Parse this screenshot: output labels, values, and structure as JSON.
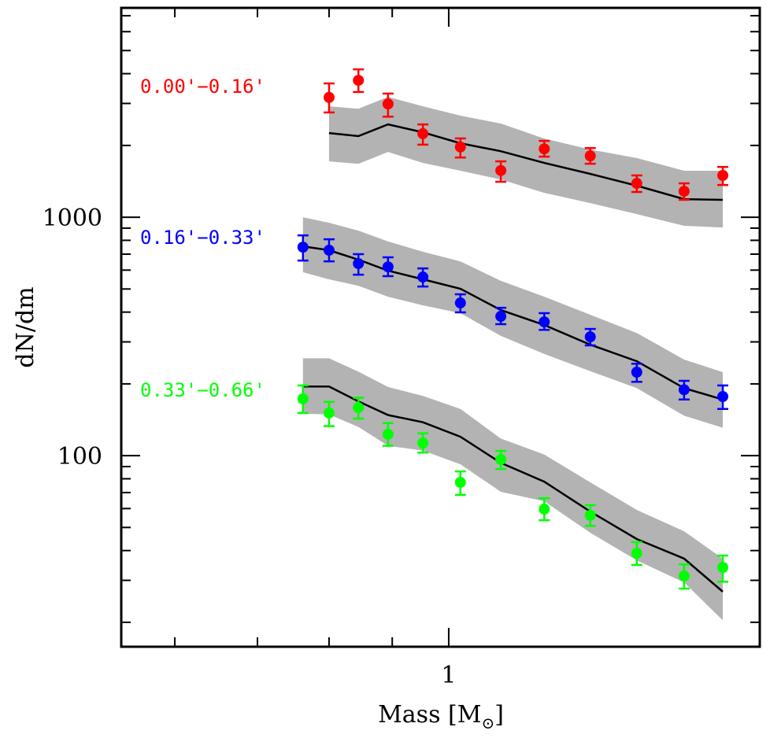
{
  "chart_data": {
    "type": "scatter",
    "title": "",
    "xlabel": "Mass [M⊙]",
    "xlabel_main": "Mass [M",
    "xlabel_sub": "⊙",
    "xlabel_close": "]",
    "ylabel": "dN/dm",
    "xscale": "log",
    "yscale": "log",
    "xlim": [
      0.543,
      1.786
    ],
    "ylim": [
      15.8,
      7550
    ],
    "grid": false,
    "x_ticks_major": [
      1
    ],
    "x_tick_labels": [
      "1"
    ],
    "x_ticks_minor": [
      0.6,
      0.7,
      0.8,
      0.9
    ],
    "y_ticks_major": [
      100,
      1000
    ],
    "y_tick_labels": [
      "100",
      "1000"
    ],
    "y_ticks_minor": [
      20,
      30,
      40,
      50,
      60,
      70,
      80,
      90,
      200,
      300,
      400,
      500,
      600,
      700,
      800,
      900,
      2000,
      3000,
      4000,
      5000,
      6000,
      7000
    ],
    "series": [
      {
        "name": "0.00'−0.16'",
        "color": "#ff0000",
        "label_position": "left",
        "points": {
          "x": [
            0.8,
            0.845,
            0.893,
            0.953,
            1.022,
            1.102,
            1.195,
            1.302,
            1.42,
            1.551,
            1.667
          ],
          "y": [
            3180,
            3750,
            2985,
            2240,
            1970,
            1570,
            1935,
            1808,
            1387,
            1285,
            1497
          ],
          "y_err_low": [
            2750,
            3350,
            2640,
            2015,
            1780,
            1408,
            1795,
            1676,
            1276,
            1183,
            1365
          ],
          "y_err_high": [
            3640,
            4170,
            3300,
            2450,
            2140,
            1715,
            2090,
            1950,
            1497,
            1387,
            1625
          ]
        },
        "model": {
          "x": [
            0.8,
            0.845,
            0.893,
            0.953,
            1.022,
            1.102,
            1.195,
            1.302,
            1.42,
            1.551,
            1.667
          ],
          "y": [
            2254,
            2188,
            2450,
            2270,
            2042,
            1892,
            1689,
            1520,
            1356,
            1191,
            1183
          ],
          "band_upper": [
            2918,
            2851,
            3198,
            2918,
            2666,
            2472,
            2138,
            1923,
            1770,
            1566,
            1566
          ],
          "band_lower": [
            1715,
            1675,
            1878,
            1689,
            1566,
            1440,
            1265,
            1146,
            1031,
            920,
            906
          ]
        }
      },
      {
        "name": "0.16'−0.33'",
        "color": "#0000ff",
        "label_position": "left",
        "points": {
          "x": [
            0.762,
            0.8,
            0.845,
            0.893,
            0.953,
            1.022,
            1.102,
            1.195,
            1.302,
            1.42,
            1.551,
            1.667
          ],
          "y": [
            749,
            727,
            639,
            619,
            561,
            437,
            384,
            364,
            315,
            224,
            189,
            177
          ],
          "y_err_low": [
            658,
            653,
            574,
            566,
            512,
            399,
            356,
            337,
            290,
            204,
            172,
            157
          ],
          "y_err_high": [
            839,
            808,
            700,
            679,
            610,
            475,
            417,
            396,
            340,
            243,
            206,
            197
          ]
        },
        "model": {
          "x": [
            0.762,
            0.8,
            0.845,
            0.893,
            0.953,
            1.022,
            1.102,
            1.195,
            1.302,
            1.42,
            1.551,
            1.667
          ],
          "y": [
            755,
            727,
            664,
            597,
            549,
            501,
            408,
            353,
            292,
            249,
            192,
            172
          ],
          "band_upper": [
            1000,
            948,
            879,
            791,
            716,
            653,
            541,
            464,
            390,
            327,
            253,
            224
          ],
          "band_lower": [
            588,
            549,
            516,
            464,
            427,
            396,
            318,
            267,
            226,
            192,
            147,
            131
          ]
        }
      },
      {
        "name": "0.33'−0.66'",
        "color": "#00ff00",
        "label_position": "left",
        "points": {
          "x": [
            0.762,
            0.8,
            0.845,
            0.893,
            0.953,
            1.022,
            1.102,
            1.195,
            1.302,
            1.42,
            1.551,
            1.667
          ],
          "y": [
            173,
            151,
            159,
            123,
            113,
            77.3,
            96.3,
            59.7,
            56.2,
            39.0,
            31.3,
            34.0
          ],
          "y_err_low": [
            151,
            133,
            143,
            110,
            103,
            68.4,
            87.9,
            53.6,
            50.8,
            34.8,
            27.7,
            29.6
          ],
          "y_err_high": [
            197,
            168,
            175,
            137,
            124,
            85.9,
            104.7,
            66.3,
            62.0,
            43.4,
            35.0,
            38.1
          ]
        },
        "model": {
          "x": [
            0.762,
            0.8,
            0.845,
            0.893,
            0.953,
            1.022,
            1.102,
            1.195,
            1.302,
            1.42,
            1.551,
            1.667
          ],
          "y": [
            195,
            195,
            169,
            148,
            138,
            120,
            93.3,
            77.8,
            58.3,
            44.7,
            37.0,
            26.9
          ],
          "band_upper": [
            256,
            256,
            225,
            194,
            178,
            157,
            118,
            101,
            77.3,
            59.2,
            48.2,
            37.0
          ],
          "band_lower": [
            150,
            149,
            132,
            110,
            105,
            92,
            70.5,
            64.4,
            47.5,
            36.4,
            29.4,
            20.4
          ]
        }
      }
    ],
    "band_color": "#b3b3b3",
    "model_line_color": "#000000"
  }
}
